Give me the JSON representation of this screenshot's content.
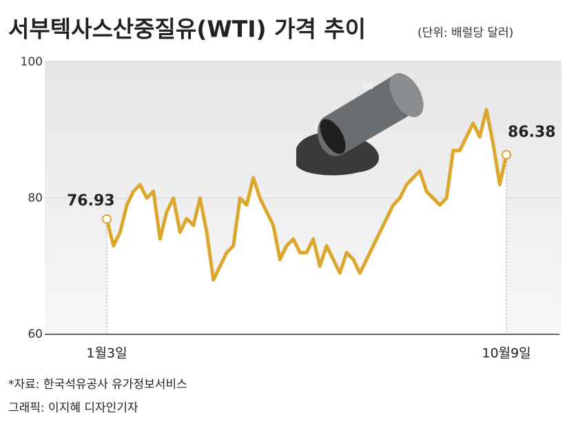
{
  "chart_data": {
    "type": "line",
    "title": "서부텍사스산중질유(WTI) 가격 추이",
    "subtitle": "(단위: 배럴당 달러)",
    "source": "*자료: 한국석유공사 유가정보서비스",
    "credit": "그래픽: 이지혜 디자인기자",
    "categories": [
      "1월3일",
      null,
      null,
      null,
      null,
      null,
      null,
      null,
      null,
      null,
      null,
      null,
      null,
      null,
      null,
      null,
      null,
      null,
      null,
      null,
      null,
      null,
      null,
      null,
      null,
      null,
      null,
      null,
      null,
      null,
      null,
      null,
      null,
      null,
      null,
      null,
      null,
      null,
      null,
      null,
      null,
      null,
      null,
      null,
      null,
      null,
      null,
      null,
      null,
      null,
      null,
      null,
      null,
      null,
      null,
      null,
      null,
      null,
      null,
      null,
      "10월9일"
    ],
    "values": [
      76.93,
      73,
      75,
      79,
      81,
      82,
      80,
      81,
      74,
      78,
      80,
      75,
      77,
      76,
      80,
      75,
      68,
      70,
      72,
      73,
      80,
      79,
      83,
      80,
      78,
      76,
      71,
      73,
      74,
      72,
      72,
      74,
      70,
      73,
      71,
      69,
      72,
      71,
      69,
      71,
      73,
      75,
      77,
      79,
      80,
      82,
      83,
      84,
      81,
      80,
      79,
      80,
      87,
      87,
      89,
      91,
      89,
      93,
      88,
      82,
      86.38
    ],
    "color": "#dca72c",
    "ylim": [
      60,
      100
    ],
    "yticks": [
      60,
      80,
      100
    ],
    "grid": true
  }
}
